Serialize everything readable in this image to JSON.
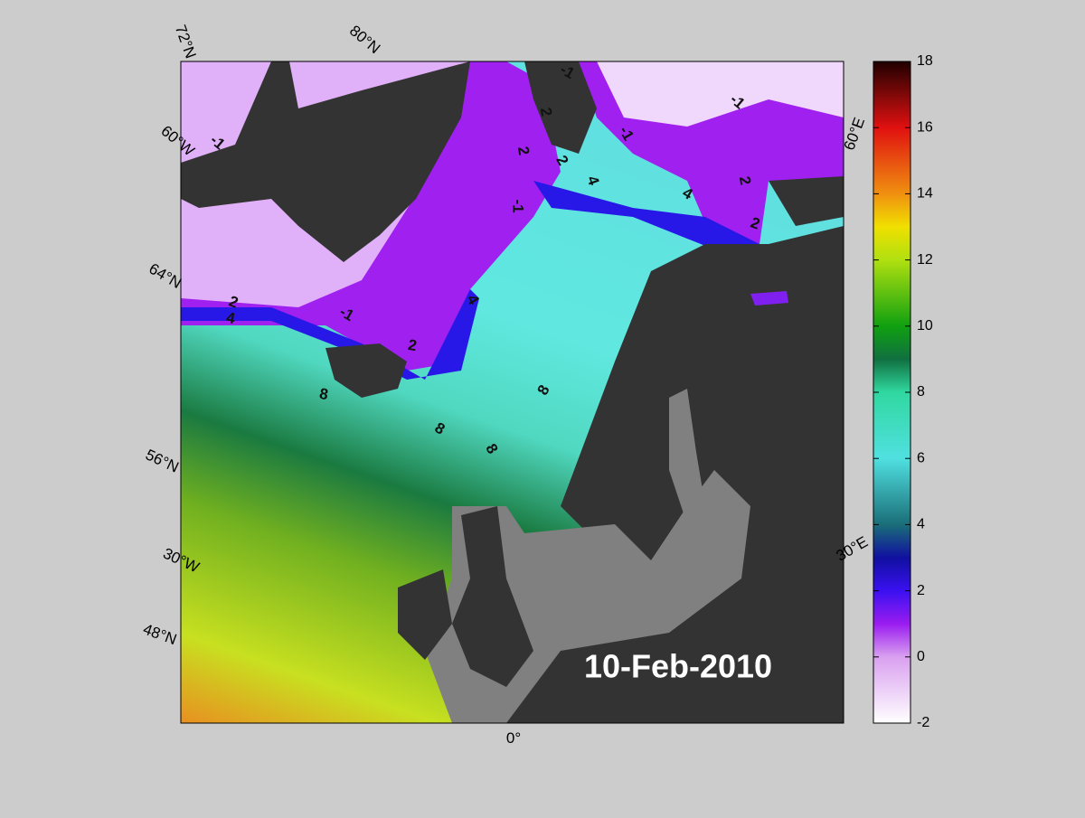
{
  "map": {
    "date": "10-Feb-2010",
    "grid_labels": {
      "lat": [
        "72°N",
        "80°N",
        "64°N",
        "56°N",
        "48°N"
      ],
      "lon": [
        "60°W",
        "30°W",
        "0°",
        "30°E",
        "60°E"
      ]
    },
    "contour_levels": [
      -1,
      2,
      4,
      8
    ],
    "colorbar": {
      "lim": [
        -2,
        18
      ],
      "ticks": [
        -2,
        0,
        2,
        4,
        6,
        8,
        10,
        12,
        14,
        16,
        18
      ]
    }
  }
}
